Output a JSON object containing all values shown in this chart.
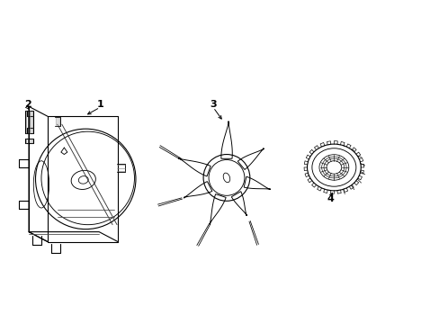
{
  "background_color": "#ffffff",
  "line_color": "#000000",
  "line_width": 0.8,
  "fig_width": 4.89,
  "fig_height": 3.6,
  "dpi": 100,
  "xlim": [
    0,
    9.8
  ],
  "ylim": [
    0,
    4.6
  ]
}
